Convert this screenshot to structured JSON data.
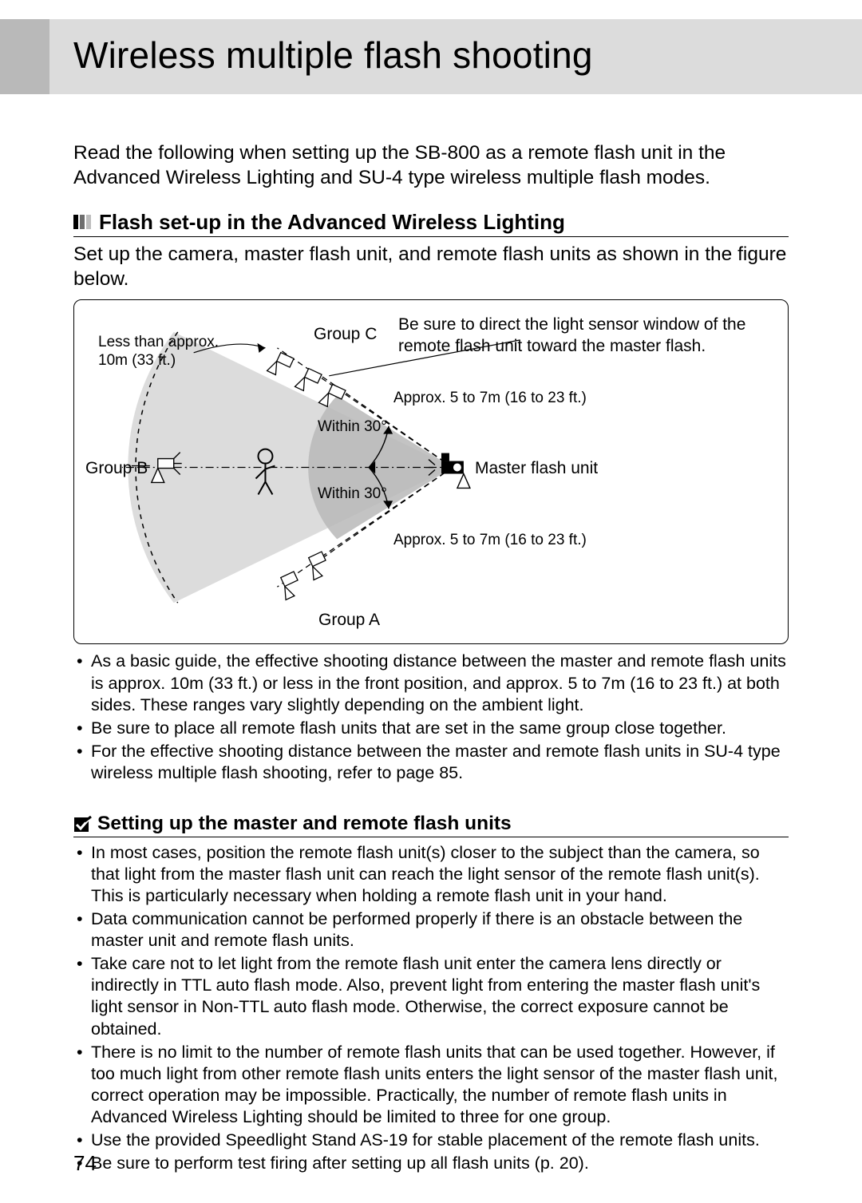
{
  "page": {
    "title": "Wireless multiple flash shooting",
    "number": "74"
  },
  "intro": "Read the following when setting up the SB-800 as a remote flash unit in the Advanced Wireless Lighting and SU-4 type wireless multiple flash modes.",
  "section1": {
    "title": "Flash set-up in the Advanced Wireless Lighting",
    "subtitle": "Set up the camera, master flash unit, and remote flash units as shown in the figure below."
  },
  "figure": {
    "labels": {
      "lessThan": "Less than approx.\n10m (33 ft.)",
      "groupC": "Group C",
      "sensorNote": "Be sure to direct the light sensor window of the remote flash unit toward the master flash.",
      "groupB": "Group B",
      "master": "Master flash unit",
      "groupA": "Group A",
      "within30a": "Within 30°",
      "within30b": "Within 30°",
      "dist1": "Approx. 5 to 7m (16 to 23 ft.)",
      "dist2": "Approx. 5 to 7m (16 to 23 ft.)"
    },
    "colors": {
      "border": "#000000",
      "dash": "#000000",
      "shade": "#bfbfbf",
      "shadeDark": "#9a9a9a"
    }
  },
  "bullets1": [
    "As a basic guide, the effective shooting distance between the master and remote flash units is approx. 10m (33 ft.) or less in the front position, and approx. 5 to 7m (16 to 23 ft.) at both sides. These ranges vary slightly depending on the ambient light.",
    "Be sure to place all remote flash units that are set in the same group close together.",
    "For the effective shooting distance between the master and remote flash units in SU-4 type wireless multiple flash shooting, refer to page 85."
  ],
  "section2": {
    "title": "Setting up the master and remote flash units"
  },
  "bullets2": [
    "In most cases, position the remote flash unit(s) closer to the subject than the camera, so that light from the master flash unit can reach the light sensor of the remote flash unit(s). This is particularly necessary when holding a remote flash unit in your hand.",
    "Data communication cannot be performed properly if there is an obstacle between the master unit and remote flash units.",
    "Take care not to let light from the remote flash unit enter the camera lens directly or indirectly in TTL auto flash mode. Also, prevent light from entering the master flash unit's light sensor in Non-TTL auto flash mode. Otherwise, the correct exposure cannot be obtained.",
    "There is no limit to the number of remote flash units that can be used together. However, if too much light from other remote flash units enters the light sensor of the master flash unit, correct operation may be impossible. Practically, the number of remote flash units in Advanced Wireless Lighting should be limited to three for one group.",
    "Use the provided Speedlight Stand AS-19 for stable placement of the remote flash units.",
    "Be sure to perform test firing after setting up all flash units (p. 20)."
  ]
}
